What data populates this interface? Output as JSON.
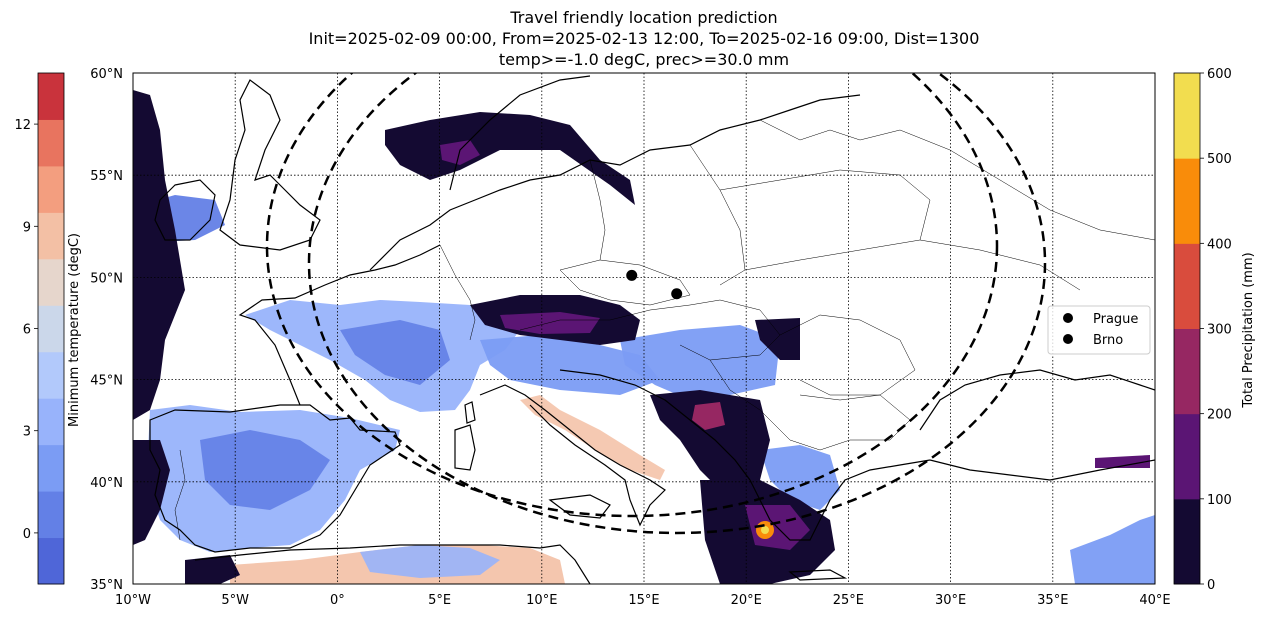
{
  "title": {
    "line1": "Travel friendly location prediction",
    "line2": "Init=2025-02-09 00:00, From=2025-02-13 12:00, To=2025-02-16 09:00, Dist=1300",
    "line3": "temp>=-1.0 degC, prec>=30.0 mm"
  },
  "map": {
    "lon_range": [
      -10,
      40
    ],
    "lat_range": [
      35,
      60
    ],
    "lon_ticks": [
      {
        "v": -10,
        "label": "10°W"
      },
      {
        "v": -5,
        "label": "5°W"
      },
      {
        "v": 0,
        "label": "0°"
      },
      {
        "v": 5,
        "label": "5°E"
      },
      {
        "v": 10,
        "label": "10°E"
      },
      {
        "v": 15,
        "label": "15°E"
      },
      {
        "v": 20,
        "label": "20°E"
      },
      {
        "v": 25,
        "label": "25°E"
      },
      {
        "v": 30,
        "label": "30°E"
      },
      {
        "v": 35,
        "label": "35°E"
      },
      {
        "v": 40,
        "label": "40°E"
      }
    ],
    "lat_ticks": [
      {
        "v": 35,
        "label": "35°N"
      },
      {
        "v": 40,
        "label": "40°N"
      },
      {
        "v": 45,
        "label": "45°N"
      },
      {
        "v": 50,
        "label": "50°N"
      },
      {
        "v": 55,
        "label": "55°N"
      },
      {
        "v": 60,
        "label": "60°N"
      }
    ],
    "grid": "dotted"
  },
  "cities": [
    {
      "name": "Prague",
      "lon": 14.4,
      "lat": 50.1
    },
    {
      "name": "Brno",
      "lon": 16.6,
      "lat": 49.2
    }
  ],
  "legend": {
    "placement": "right",
    "entries": [
      "Prague",
      "Brno"
    ]
  },
  "colorbar_temp": {
    "label": "Minimum temperature (degC)",
    "min": -1.5,
    "max": 13.5,
    "ticks": [
      {
        "v": 0,
        "label": "0"
      },
      {
        "v": 3,
        "label": "3"
      },
      {
        "v": 6,
        "label": "6"
      },
      {
        "v": 9,
        "label": "9"
      },
      {
        "v": 12,
        "label": "12"
      }
    ],
    "colors": [
      "#4f66d8",
      "#6380e6",
      "#7b9cf4",
      "#98b3fb",
      "#b2c9fb",
      "#cbd7ea",
      "#e6d6cc",
      "#f3c0a5",
      "#f39e7f",
      "#e8745f",
      "#c9333c"
    ]
  },
  "colorbar_prec": {
    "label": "Total Precipitation (mm)",
    "ticks": [
      {
        "v": 0,
        "label": "0"
      },
      {
        "v": 100,
        "label": "100"
      },
      {
        "v": 200,
        "label": "200"
      },
      {
        "v": 300,
        "label": "300"
      },
      {
        "v": 400,
        "label": "400"
      },
      {
        "v": 500,
        "label": "500"
      },
      {
        "v": 600,
        "label": "600"
      }
    ],
    "colors": [
      "#140a32",
      "#5b1574",
      "#962762",
      "#d94c3d",
      "#f98c0a",
      "#f2dd4f"
    ]
  }
}
